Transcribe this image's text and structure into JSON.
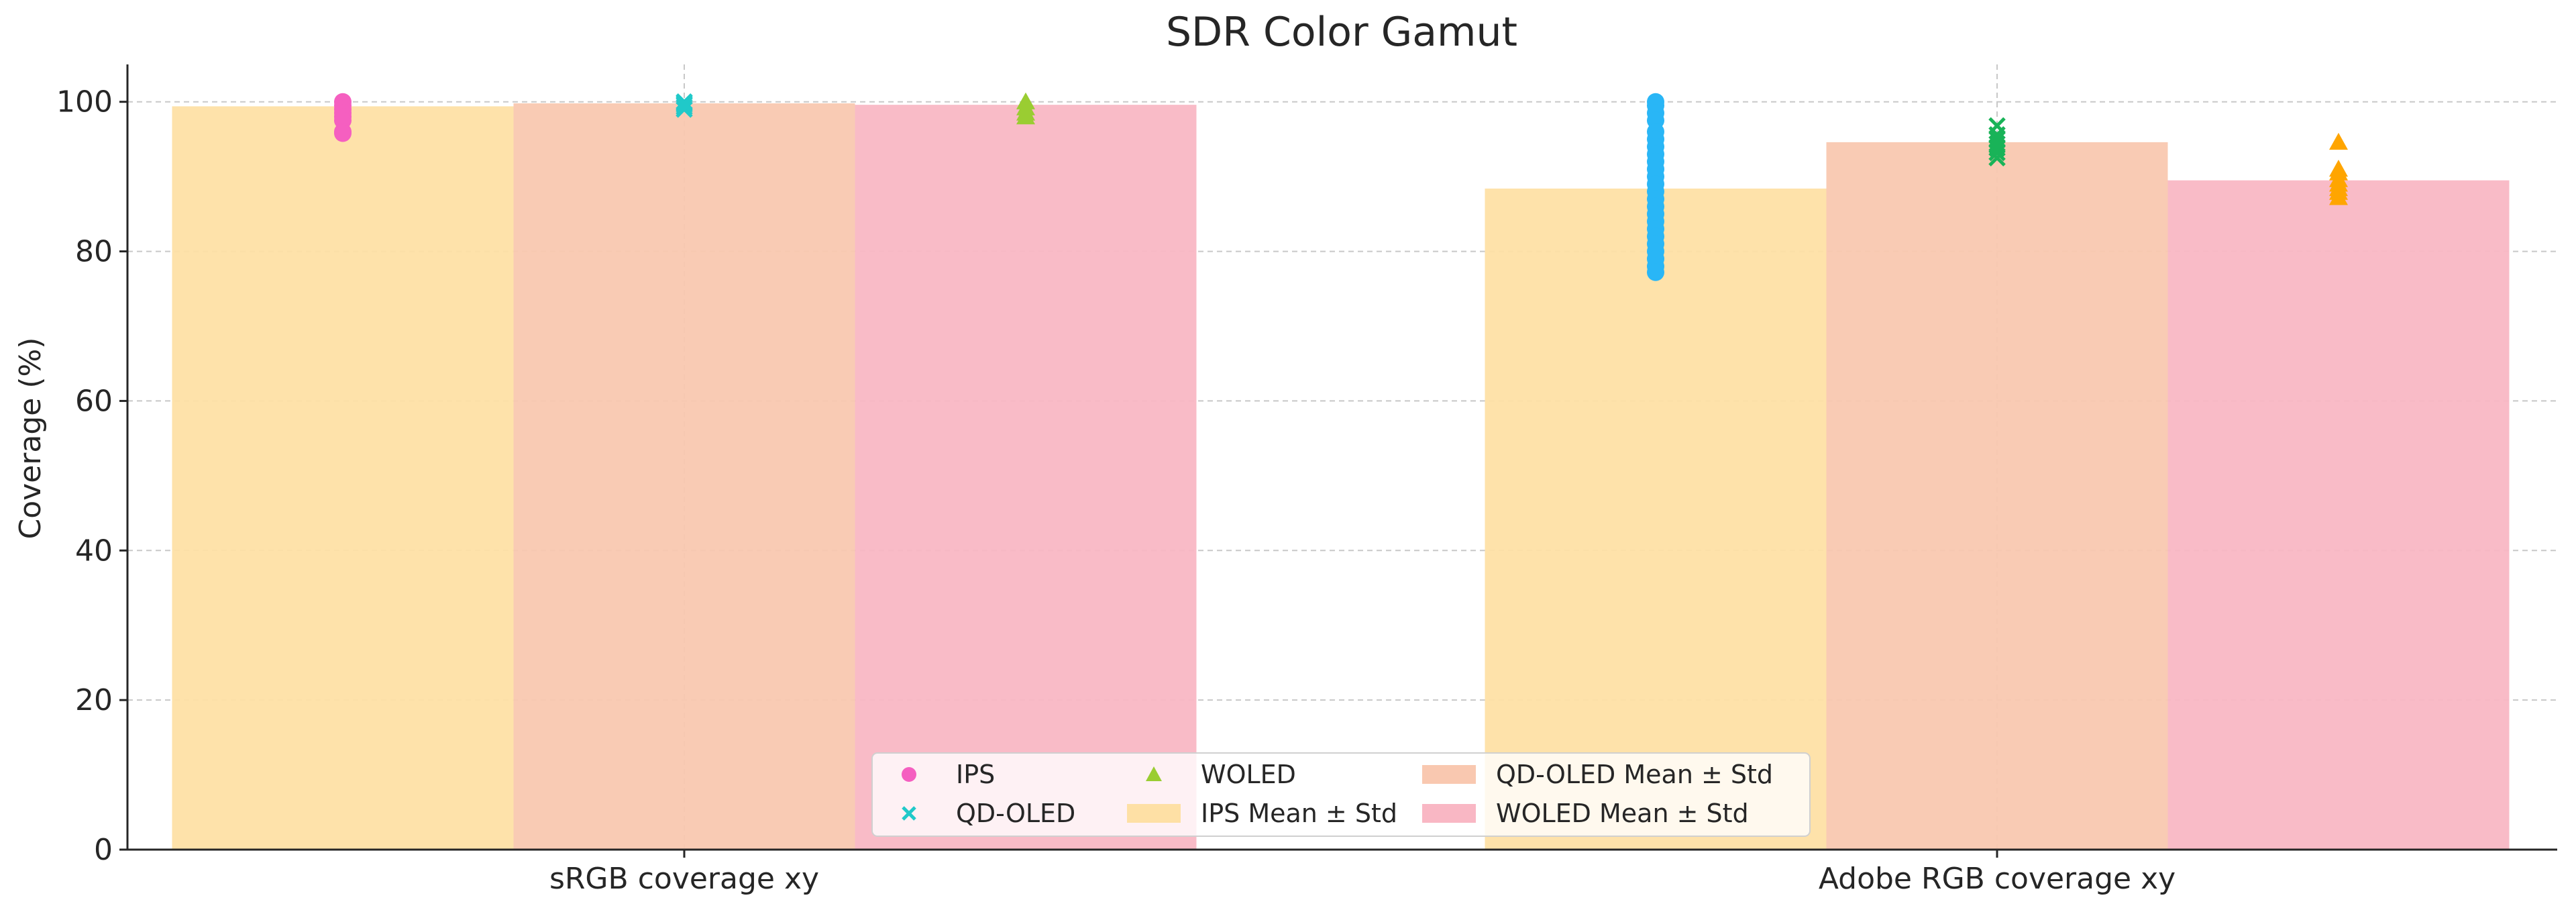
{
  "chart_data": {
    "type": "bar",
    "title": "SDR Color Gamut",
    "xlabel": "",
    "ylabel": "Coverage (%)",
    "ylim": [
      0,
      105
    ],
    "yticks": [
      0,
      20,
      40,
      60,
      80,
      100
    ],
    "grid": true,
    "legend_position": "lower center",
    "categories": [
      "sRGB coverage xy",
      "Adobe RGB coverage xy"
    ],
    "series": [
      {
        "name": "IPS Mean ± Std",
        "values": [
          99.4,
          88.4
        ],
        "color": "#fee0a5"
      },
      {
        "name": "QD-OLED Mean ± Std",
        "values": [
          99.8,
          94.6
        ],
        "color": "#f9c8b0"
      },
      {
        "name": "WOLED Mean ± Std",
        "values": [
          99.6,
          89.5
        ],
        "color": "#f9b7c4"
      }
    ],
    "scatter": [
      {
        "name": "IPS",
        "marker": "circle",
        "color": "#f55fc0",
        "points": [
          {
            "category": 0,
            "values": [
              100,
              99.5,
              99,
              98.5,
              98,
              97.5,
              96,
              95.8
            ]
          },
          {
            "category": 1,
            "values": [
              100,
              99.5,
              98.5,
              97.5,
              96,
              95,
              94,
              93,
              92,
              91,
              90,
              89,
              88,
              87,
              86,
              85,
              84,
              83,
              82,
              81,
              80,
              79,
              78,
              77.2
            ],
            "color": "#29b6f6"
          }
        ]
      },
      {
        "name": "QD-OLED",
        "marker": "x",
        "color": "#20c9c9",
        "points": [
          {
            "category": 0,
            "values": [
              100,
              99.8,
              99.6,
              99.3,
              99
            ]
          },
          {
            "category": 1,
            "values": [
              96.8,
              95.6,
              95,
              94.4,
              93.8,
              93.2,
              92.5
            ],
            "color": "#19b358"
          }
        ]
      },
      {
        "name": "WOLED",
        "marker": "triangle",
        "color": "#9acd32",
        "points": [
          {
            "category": 0,
            "values": [
              100,
              99.2,
              98.5,
              98
            ]
          },
          {
            "category": 1,
            "values": [
              94.6,
              91,
              90.5,
              89.6,
              89,
              88.4,
              87.9,
              87.2
            ],
            "color": "#ffa500"
          }
        ]
      }
    ],
    "legend": [
      "IPS",
      "QD-OLED",
      "WOLED",
      "IPS Mean ± Std",
      "QD-OLED Mean ± Std",
      "WOLED Mean ± Std"
    ]
  }
}
